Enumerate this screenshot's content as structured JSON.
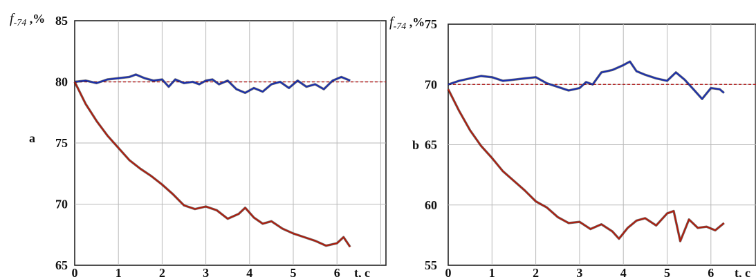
{
  "chart_data": [
    {
      "type": "line",
      "panel_label": "a",
      "ylabel_main": "f",
      "ylabel_sub": "-74",
      "ylabel_unit": " ,%",
      "xlabel": "t, c",
      "xlim": [
        0,
        7
      ],
      "ylim": [
        65,
        85
      ],
      "x_ticks": [
        "0",
        "1",
        "2",
        "3",
        "4",
        "5",
        "6"
      ],
      "y_ticks": [
        "65",
        "70",
        "75",
        "80",
        "85"
      ],
      "grid": true,
      "colors": {
        "blue": "#1a2fb0",
        "red": "#b01c0c",
        "ref_dash": "#b02020",
        "grid": "#b9b9b9"
      },
      "reference_line": 80,
      "series": [
        {
          "color": "blue",
          "x": [
            0,
            0.25,
            0.5,
            0.75,
            1.0,
            1.25,
            1.4,
            1.6,
            1.8,
            2.0,
            2.15,
            2.3,
            2.5,
            2.7,
            2.85,
            3.0,
            3.15,
            3.3,
            3.5,
            3.7,
            3.9,
            4.1,
            4.3,
            4.5,
            4.7,
            4.9,
            5.1,
            5.3,
            5.5,
            5.7,
            5.9,
            6.1,
            6.3
          ],
          "y": [
            80,
            80.1,
            79.9,
            80.2,
            80.3,
            80.4,
            80.6,
            80.3,
            80.1,
            80.2,
            79.6,
            80.2,
            79.9,
            80.0,
            79.8,
            80.1,
            80.2,
            79.8,
            80.1,
            79.4,
            79.1,
            79.5,
            79.2,
            79.8,
            80.0,
            79.5,
            80.1,
            79.6,
            79.8,
            79.4,
            80.1,
            80.4,
            80.1
          ]
        },
        {
          "color": "red",
          "x": [
            0,
            0.25,
            0.5,
            0.75,
            1.0,
            1.25,
            1.5,
            1.75,
            2.0,
            2.25,
            2.5,
            2.75,
            3.0,
            3.25,
            3.5,
            3.75,
            3.9,
            4.1,
            4.3,
            4.5,
            4.75,
            5.0,
            5.25,
            5.5,
            5.75,
            6.0,
            6.15,
            6.3
          ],
          "y": [
            80,
            78.2,
            76.8,
            75.6,
            74.6,
            73.6,
            72.9,
            72.3,
            71.6,
            70.8,
            69.9,
            69.6,
            69.8,
            69.5,
            68.8,
            69.2,
            69.7,
            68.9,
            68.4,
            68.6,
            68.0,
            67.6,
            67.3,
            67.0,
            66.6,
            66.8,
            67.3,
            66.5
          ]
        }
      ]
    },
    {
      "type": "line",
      "panel_label": "b",
      "ylabel_main": "f",
      "ylabel_sub": "-74",
      "ylabel_unit": " ,%",
      "xlabel": "t, c",
      "xlim": [
        0,
        7
      ],
      "ylim": [
        55,
        75
      ],
      "x_ticks": [
        "0",
        "1",
        "2",
        "3",
        "4",
        "5",
        "6"
      ],
      "y_ticks": [
        "55",
        "60",
        "65",
        "70",
        "75"
      ],
      "grid": true,
      "colors": {
        "blue": "#1a2fb0",
        "red": "#b01c0c",
        "ref_dash": "#b02020",
        "grid": "#b9b9b9"
      },
      "reference_line": 70,
      "series": [
        {
          "color": "blue",
          "x": [
            0,
            0.25,
            0.5,
            0.75,
            1.0,
            1.25,
            1.5,
            1.75,
            2.0,
            2.25,
            2.5,
            2.75,
            3.0,
            3.15,
            3.3,
            3.5,
            3.75,
            4.0,
            4.15,
            4.3,
            4.5,
            4.75,
            5.0,
            5.2,
            5.4,
            5.6,
            5.8,
            6.0,
            6.2,
            6.3
          ],
          "y": [
            70,
            70.3,
            70.5,
            70.7,
            70.6,
            70.3,
            70.4,
            70.5,
            70.6,
            70.1,
            69.8,
            69.5,
            69.7,
            70.2,
            70.0,
            71.0,
            71.2,
            71.6,
            71.9,
            71.1,
            70.8,
            70.5,
            70.3,
            71.0,
            70.4,
            69.6,
            68.8,
            69.7,
            69.6,
            69.3
          ]
        },
        {
          "color": "red",
          "x": [
            0,
            0.25,
            0.5,
            0.75,
            1.0,
            1.25,
            1.5,
            1.75,
            2.0,
            2.25,
            2.5,
            2.75,
            3.0,
            3.25,
            3.5,
            3.75,
            3.9,
            4.1,
            4.3,
            4.5,
            4.75,
            5.0,
            5.15,
            5.3,
            5.5,
            5.7,
            5.9,
            6.1,
            6.3
          ],
          "y": [
            69.6,
            67.8,
            66.2,
            64.9,
            63.9,
            62.8,
            62.0,
            61.2,
            60.3,
            59.8,
            59.0,
            58.5,
            58.6,
            58.0,
            58.4,
            57.8,
            57.2,
            58.1,
            58.7,
            58.9,
            58.3,
            59.3,
            59.5,
            57.0,
            58.8,
            58.1,
            58.2,
            57.9,
            58.5
          ]
        }
      ]
    }
  ]
}
